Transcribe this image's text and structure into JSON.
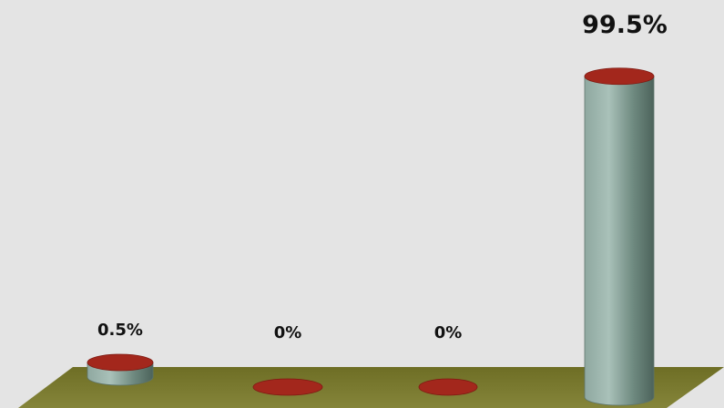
{
  "chart_data": {
    "type": "bar",
    "style": "3d-cylinder",
    "categories": [
      "",
      "",
      "",
      ""
    ],
    "values": [
      0.5,
      0,
      0,
      99.5
    ],
    "data_labels": [
      "0.5%",
      "0%",
      "0%",
      "99.5%"
    ],
    "unit": "%",
    "ylim": [
      0,
      100
    ],
    "title": "",
    "xlabel": "",
    "ylabel": "",
    "grid": false,
    "legend": "none",
    "colors": {
      "background": "#e4e4e4",
      "floor": "#7a7a2e",
      "bar_body": "#7d978e",
      "bar_top": "#a3271c"
    }
  }
}
